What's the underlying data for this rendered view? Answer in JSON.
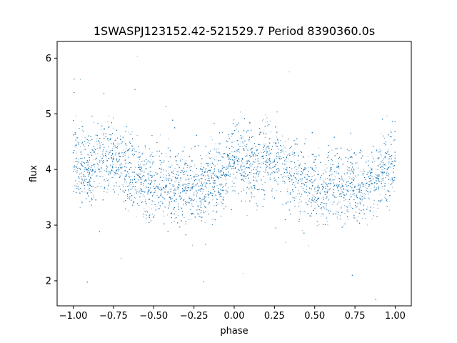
{
  "chart_data": {
    "type": "scatter",
    "title": "1SWASPJ123152.42-521529.7 Period 8390360.0s",
    "xlabel": "phase",
    "ylabel": "flux",
    "xlim": [
      -1.1,
      1.1
    ],
    "ylim": [
      1.55,
      6.3
    ],
    "xticks": [
      -1.0,
      -0.75,
      -0.5,
      -0.25,
      0.0,
      0.25,
      0.5,
      0.75,
      1.0
    ],
    "xtick_labels": [
      "−1.00",
      "−0.75",
      "−0.50",
      "−0.25",
      "0.00",
      "0.25",
      "0.50",
      "0.75",
      "1.00"
    ],
    "yticks": [
      2,
      3,
      4,
      5,
      6
    ],
    "ytick_labels": [
      "2",
      "3",
      "4",
      "5",
      "6"
    ],
    "grid": false,
    "marker_color": "#1f77b4",
    "marker_size": "tiny",
    "series": [
      {
        "x": [
          -1.0,
          -0.98,
          -0.95,
          -0.92,
          -0.9,
          -0.88,
          -0.85,
          -0.82,
          -0.8,
          -0.78,
          -0.75,
          -0.72,
          -0.7,
          -0.68,
          -0.65,
          -0.62,
          -0.6,
          -0.58,
          -0.55,
          -0.52,
          -0.5,
          -0.48,
          -0.45,
          -0.42,
          -0.4,
          -0.38,
          -0.35,
          -0.32,
          -0.3,
          -0.28,
          -0.25,
          -0.22,
          -0.2,
          -0.18,
          -0.15,
          -0.12,
          -0.1,
          -0.08,
          -0.05,
          -0.02,
          0.0,
          0.02,
          0.05,
          0.08,
          0.1,
          0.12,
          0.15,
          0.18,
          0.2,
          0.22,
          0.25,
          0.28,
          0.3,
          0.32,
          0.35,
          0.38,
          0.4,
          0.42,
          0.45,
          0.48,
          0.5,
          0.52,
          0.55,
          0.58,
          0.6,
          0.62,
          0.65,
          0.68,
          0.7,
          0.72,
          0.75,
          0.78,
          0.8,
          0.82,
          0.85,
          0.88,
          0.9,
          0.92,
          0.95,
          0.98,
          1.0
        ],
        "y": [
          4.3,
          4.2,
          4.1,
          4.0,
          3.95,
          4.0,
          4.1,
          4.2,
          4.25,
          4.2,
          4.2,
          4.15,
          4.1,
          4.05,
          4.0,
          3.95,
          3.9,
          3.85,
          3.8,
          3.75,
          3.7,
          3.7,
          3.65,
          3.7,
          3.75,
          3.7,
          3.65,
          3.6,
          3.7,
          3.75,
          3.7,
          3.7,
          3.65,
          3.7,
          3.75,
          3.8,
          3.85,
          3.9,
          4.0,
          4.05,
          4.1,
          4.15,
          4.2,
          4.15,
          4.1,
          4.0,
          4.1,
          4.2,
          4.25,
          4.2,
          4.15,
          4.2,
          4.1,
          4.0,
          3.9,
          3.85,
          3.8,
          3.75,
          3.7,
          3.65,
          3.65,
          3.7,
          3.65,
          3.7,
          3.75,
          3.7,
          3.7,
          3.65,
          3.7,
          3.75,
          3.7,
          3.65,
          3.7,
          3.75,
          3.8,
          3.85,
          3.9,
          3.95,
          4.0,
          4.1,
          4.15
        ]
      }
    ]
  }
}
